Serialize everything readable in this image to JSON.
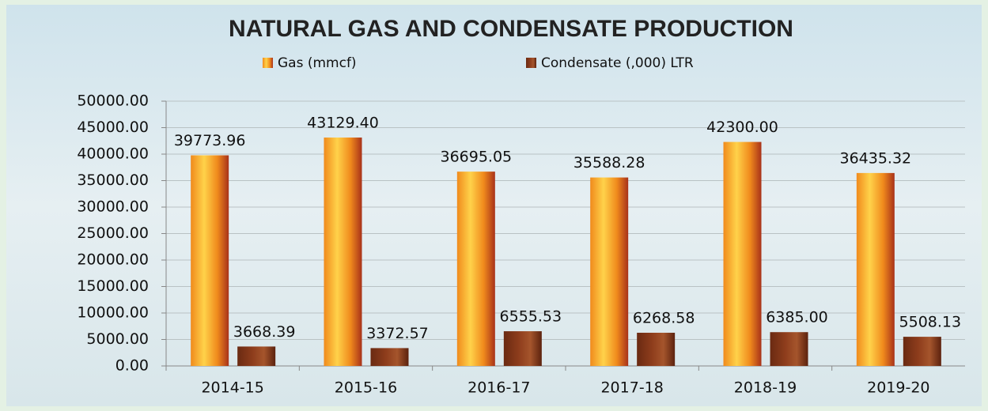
{
  "chart_data": {
    "type": "bar",
    "title": "NATURAL GAS AND CONDENSATE PRODUCTION",
    "categories": [
      "2014-15",
      "2015-16",
      "2016-17",
      "2017-18",
      "2018-19",
      "2019-20"
    ],
    "series": [
      {
        "name": "Gas (mmcf)",
        "color": "#f08a1c",
        "values": [
          39773.96,
          43129.4,
          36695.05,
          35588.28,
          42300,
          36435.32
        ],
        "value_labels": [
          "39773.96",
          "43129.40",
          "36695.05",
          "35588.28",
          "42300.00",
          "36435.32"
        ]
      },
      {
        "name": "Condensate (,000) LTR",
        "color": "#8e3d1c",
        "values": [
          3668.39,
          3372.57,
          6555.53,
          6268.58,
          6385,
          5508.13
        ],
        "value_labels": [
          "3668.39",
          "3372.57",
          "6555.53",
          "6268.58",
          "6385.00",
          "5508.13"
        ]
      }
    ],
    "ylim": [
      0,
      50000
    ],
    "yticks": [
      {
        "value": 0,
        "label": "0.00"
      },
      {
        "value": 5000,
        "label": "5000.00"
      },
      {
        "value": 10000,
        "label": "10000.00"
      },
      {
        "value": 15000,
        "label": "15000.00"
      },
      {
        "value": 20000,
        "label": "20000.00"
      },
      {
        "value": 25000,
        "label": "25000.00"
      },
      {
        "value": 30000,
        "label": "30000.00"
      },
      {
        "value": 35000,
        "label": "35000.00"
      },
      {
        "value": 40000,
        "label": "40000.00"
      },
      {
        "value": 45000,
        "label": "45000.00"
      },
      {
        "value": 50000,
        "label": "50000.00"
      }
    ],
    "grid": true
  }
}
